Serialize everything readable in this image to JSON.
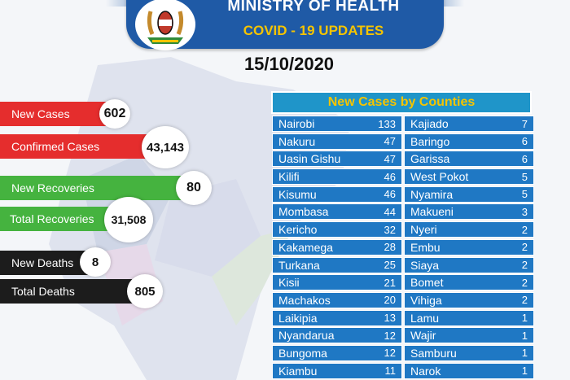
{
  "header": {
    "ministry": "MINISTRY OF HEALTH",
    "subtitle": "COVID - 19 UPDATES",
    "date": "15/10/2020"
  },
  "stats": {
    "new_cases": {
      "label": "New Cases",
      "value": "602"
    },
    "confirmed_cases": {
      "label": "Confirmed Cases",
      "value": "43,143"
    },
    "new_recoveries": {
      "label": "New Recoveries",
      "value": "80"
    },
    "total_recoveries": {
      "label": "Total Recoveries",
      "value": "31,508"
    },
    "new_deaths": {
      "label": "New Deaths",
      "value": "8"
    },
    "total_deaths": {
      "label": "Total Deaths",
      "value": "805"
    }
  },
  "counties": {
    "title": "New Cases by Counties",
    "left": [
      {
        "name": "Nairobi",
        "count": "133"
      },
      {
        "name": "Nakuru",
        "count": "47"
      },
      {
        "name": "Uasin Gishu",
        "count": "47"
      },
      {
        "name": "Kilifi",
        "count": "46"
      },
      {
        "name": "Kisumu",
        "count": "46"
      },
      {
        "name": "Mombasa",
        "count": "44"
      },
      {
        "name": "Kericho",
        "count": "32"
      },
      {
        "name": "Kakamega",
        "count": "28"
      },
      {
        "name": "Turkana",
        "count": "25"
      },
      {
        "name": "Kisii",
        "count": "21"
      },
      {
        "name": "Machakos",
        "count": "20"
      },
      {
        "name": "Laikipia",
        "count": "13"
      },
      {
        "name": "Nyandarua",
        "count": "12"
      },
      {
        "name": "Bungoma",
        "count": "12"
      },
      {
        "name": "Kiambu",
        "count": "11"
      }
    ],
    "right": [
      {
        "name": "Kajiado",
        "count": "7"
      },
      {
        "name": "Baringo",
        "count": "6"
      },
      {
        "name": "Garissa",
        "count": "6"
      },
      {
        "name": "West Pokot",
        "count": "5"
      },
      {
        "name": "Nyamira",
        "count": "5"
      },
      {
        "name": "Makueni",
        "count": "3"
      },
      {
        "name": "Nyeri",
        "count": "2"
      },
      {
        "name": "Embu",
        "count": "2"
      },
      {
        "name": "Siaya",
        "count": "2"
      },
      {
        "name": "Bomet",
        "count": "2"
      },
      {
        "name": "Vihiga",
        "count": "2"
      },
      {
        "name": "Lamu",
        "count": "1"
      },
      {
        "name": "Wajir",
        "count": "1"
      },
      {
        "name": "Samburu",
        "count": "1"
      },
      {
        "name": "Narok",
        "count": "1"
      }
    ]
  },
  "colors": {
    "banner": "#1f5aa6",
    "title_gold": "#f5c400",
    "table_row": "#1f78c4",
    "red": "#e52d2d",
    "green": "#45b33f",
    "black": "#1c1c1c"
  }
}
